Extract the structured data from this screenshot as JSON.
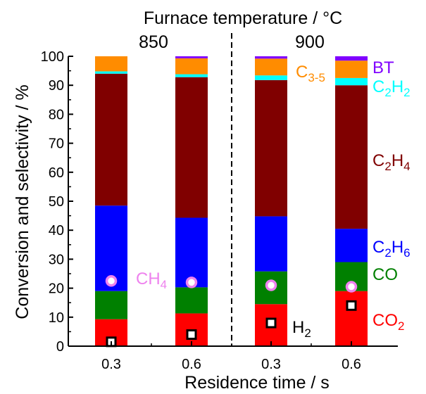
{
  "chart_data": {
    "type": "bar",
    "stacked": true,
    "top_title": "Furnace temperature / °C",
    "temperature_groups": [
      "850",
      "900"
    ],
    "xlabel": "Residence time / s",
    "ylabel": "Conversion and selectivity / %",
    "ylim": [
      0,
      100
    ],
    "yticks": [
      "0",
      "10",
      "20",
      "30",
      "40",
      "50",
      "60",
      "70",
      "80",
      "90",
      "100"
    ],
    "categories": [
      "0.3",
      "0.6",
      "0.3",
      "0.6"
    ],
    "series": [
      {
        "key": "CO2",
        "label_main": "CO",
        "label_sub": "2",
        "color": "#ff0000",
        "values": [
          9.3,
          11.3,
          14.5,
          19.0
        ]
      },
      {
        "key": "CO",
        "label_main": "CO",
        "label_sub": "",
        "color": "#008000",
        "values": [
          9.7,
          9.0,
          11.3,
          10.0
        ]
      },
      {
        "key": "C2H6",
        "label_main": "C",
        "label_sub": "2",
        "label_main2": "H",
        "label_sub2": "6",
        "color": "#0000ff",
        "values": [
          29.5,
          24.0,
          19.0,
          11.5
        ]
      },
      {
        "key": "C2H4",
        "label_main": "C",
        "label_sub": "2",
        "label_main2": "H",
        "label_sub2": "4",
        "color": "#800000",
        "values": [
          45.5,
          48.5,
          47.0,
          49.5
        ]
      },
      {
        "key": "C2H2",
        "label_main": "C",
        "label_sub": "2",
        "label_main2": "H",
        "label_sub2": "2",
        "color": "#00ffff",
        "values": [
          0.8,
          1.0,
          1.6,
          2.5
        ]
      },
      {
        "key": "C3-5",
        "label_main": "C",
        "label_sub": "3-5",
        "color": "#ff8c00",
        "values": [
          5.2,
          5.5,
          5.8,
          6.0
        ]
      },
      {
        "key": "BT",
        "label_main": "BT",
        "label_sub": "",
        "color": "#8000ff",
        "values": [
          0.0,
          0.7,
          0.8,
          1.5
        ]
      }
    ],
    "markers": [
      {
        "key": "H2",
        "label_main": "H",
        "label_sub": "2",
        "shape": "square",
        "values": [
          1.5,
          4.0,
          8.0,
          14.0
        ]
      },
      {
        "key": "CH4",
        "label_main": "CH",
        "label_sub": "4",
        "shape": "circle",
        "color": "#ee82ee",
        "values": [
          22.5,
          22.0,
          21.0,
          20.5
        ]
      }
    ]
  }
}
